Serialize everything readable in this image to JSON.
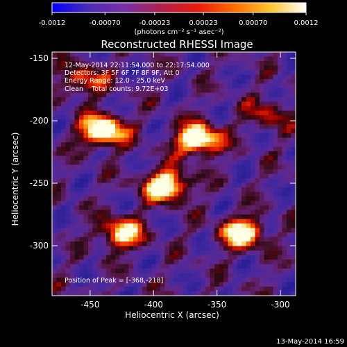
{
  "colorbar": {
    "tick_labels": [
      "-0.0012",
      "-0.00070",
      "-0.00023",
      "0.00023",
      "0.00070",
      "0.0012"
    ],
    "tick_values": [
      -0.0012,
      -0.0007,
      -0.00023,
      0.00023,
      0.0007,
      0.0012
    ],
    "range": [
      -0.0012,
      0.0012
    ],
    "units_label": "(photons cm⁻² s⁻¹ asec⁻²)",
    "colors": [
      "#0000ff",
      "#4b2bb8",
      "#7a2ea8",
      "#b0204c",
      "#e81a0c",
      "#ff6a00",
      "#ffc32a",
      "#ffffff"
    ]
  },
  "plot": {
    "title": "Reconstructed RHESSI Image",
    "xlabel": "Heliocentric X (arcsec)",
    "ylabel": "Heliocentric Y (arcsec)",
    "x_tick_labels": [
      "-450",
      "-400",
      "-350",
      "-300"
    ],
    "x_tick_values": [
      -450,
      -400,
      -350,
      -300
    ],
    "y_tick_labels": [
      "-150",
      "-200",
      "-250",
      "-300"
    ],
    "y_tick_values": [
      -150,
      -200,
      -250,
      -300
    ],
    "xlim": [
      -480,
      -288
    ],
    "ylim": [
      -340,
      -145
    ],
    "info_lines": [
      "12-May-2014 22:11:54.000 to 22:17:54.000",
      "Detectors: 3F 5F 6F 7F 8F 9F, Att 0",
      "Energy Range: 12.0 - 25.0 keV",
      "Clean    Total counts: 9.72E+03"
    ],
    "peak_label": "Position of Peak = [-368,-218]"
  },
  "footer": {
    "timestamp": "13-May-2014 16:59"
  },
  "image_data": {
    "type": "heatmap",
    "sources": [
      {
        "x": -440,
        "y": -208,
        "amp": 1.0
      },
      {
        "x": -365,
        "y": -215,
        "amp": 1.0
      },
      {
        "x": -390,
        "y": -252,
        "amp": 0.95
      },
      {
        "x": -425,
        "y": -290,
        "amp": 0.75
      },
      {
        "x": -330,
        "y": -290,
        "amp": 0.85
      },
      {
        "x": -455,
        "y": -168,
        "amp": 0.5
      },
      {
        "x": -310,
        "y": -195,
        "amp": 0.35
      }
    ],
    "peak": [
      -368,
      -218
    ]
  }
}
